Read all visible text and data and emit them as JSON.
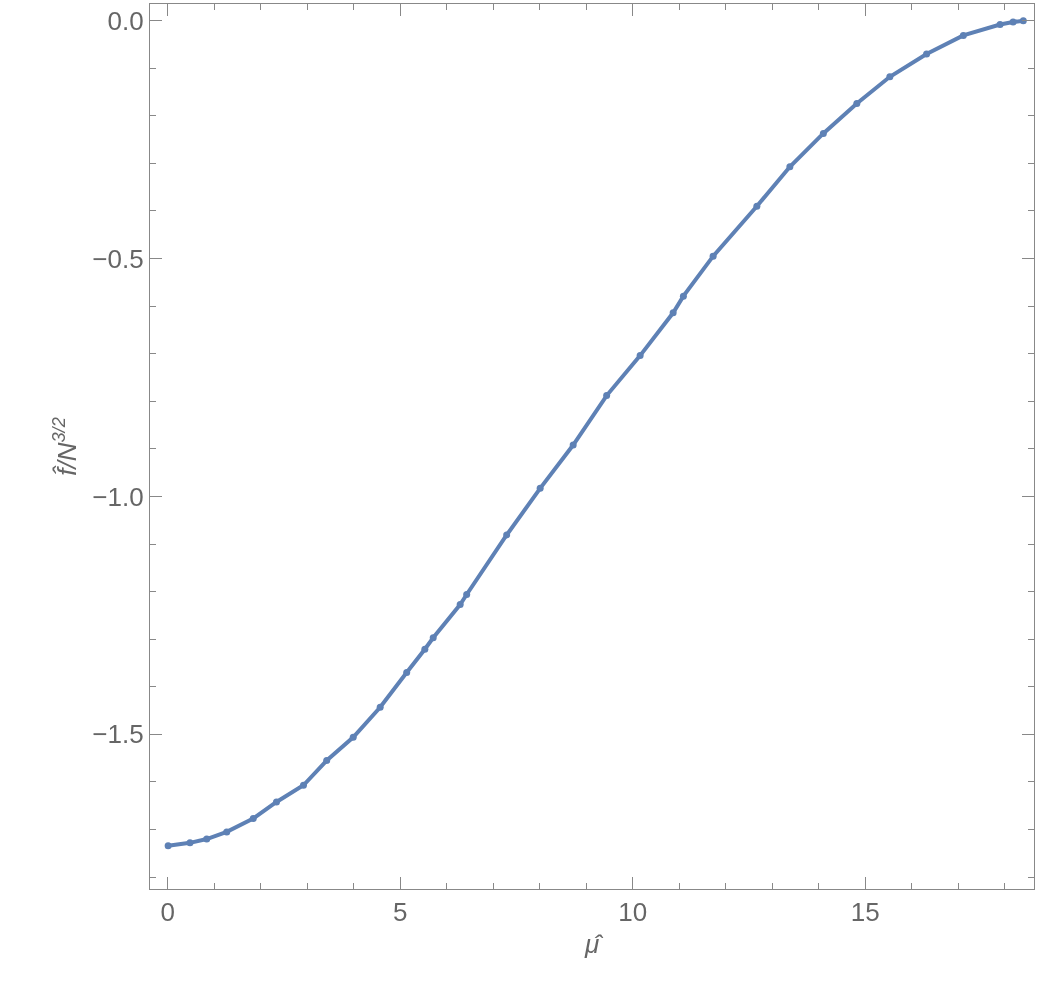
{
  "chart_data": {
    "type": "line",
    "xlabel": "μ̂",
    "ylabel": "f̂/N$^{3/2}$",
    "x": [
      0.01,
      0.48,
      0.84,
      1.27,
      1.84,
      2.34,
      2.92,
      3.42,
      3.99,
      4.57,
      5.14,
      5.53,
      5.71,
      6.29,
      6.43,
      7.29,
      8.01,
      8.72,
      9.44,
      10.16,
      10.87,
      11.09,
      11.73,
      12.67,
      13.38,
      14.1,
      14.82,
      15.53,
      16.32,
      17.11,
      17.9,
      18.18,
      18.4
    ],
    "series": [
      {
        "color": "#5e81b5",
        "values": [
          -1.734,
          -1.728,
          -1.72,
          -1.705,
          -1.677,
          -1.642,
          -1.607,
          -1.555,
          -1.506,
          -1.443,
          -1.37,
          -1.321,
          -1.297,
          -1.227,
          -1.206,
          -1.081,
          -0.983,
          -0.892,
          -0.788,
          -0.704,
          -0.614,
          -0.579,
          -0.495,
          -0.39,
          -0.307,
          -0.237,
          -0.174,
          -0.118,
          -0.07,
          -0.031,
          -0.008,
          -0.003,
          0.0
        ]
      }
    ],
    "xlim": [
      -0.38,
      18.63
    ],
    "ylim": [
      -1.825,
      0.035
    ],
    "xticks": [
      0,
      5,
      10,
      15,
      {
        "value": 1,
        "label": null
      },
      {
        "value": 2,
        "label": null
      },
      {
        "value": 3,
        "label": null
      },
      {
        "value": 4,
        "label": null
      },
      {
        "value": 6,
        "label": null
      },
      {
        "value": 7,
        "label": null
      },
      {
        "value": 8,
        "label": null
      },
      {
        "value": 9,
        "label": null
      },
      {
        "value": 11,
        "label": null
      },
      {
        "value": 12,
        "label": null
      },
      {
        "value": 13,
        "label": null
      },
      {
        "value": 14,
        "label": null
      },
      {
        "value": 16,
        "label": null
      },
      {
        "value": 17,
        "label": null
      },
      {
        "value": 18,
        "label": null
      }
    ],
    "yticks": [
      {
        "value": 0,
        "label": "0.0"
      },
      {
        "value": -0.5,
        "label": "−0.5"
      },
      {
        "value": -1.0,
        "label": "−1.0"
      },
      {
        "value": -1.5,
        "label": "−1.5"
      },
      {
        "value": -0.1,
        "label": null
      },
      {
        "value": -0.2,
        "label": null
      },
      {
        "value": -0.3,
        "label": null
      },
      {
        "value": -0.4,
        "label": null
      },
      {
        "value": -0.6,
        "label": null
      },
      {
        "value": -0.7,
        "label": null
      },
      {
        "value": -0.8,
        "label": null
      },
      {
        "value": -0.9,
        "label": null
      },
      {
        "value": -1.1,
        "label": null
      },
      {
        "value": -1.2,
        "label": null
      },
      {
        "value": -1.3,
        "label": null
      },
      {
        "value": -1.4,
        "label": null
      },
      {
        "value": -1.6,
        "label": null
      },
      {
        "value": -1.7,
        "label": null
      },
      {
        "value": -1.8,
        "label": null
      }
    ],
    "marker": "circle"
  }
}
